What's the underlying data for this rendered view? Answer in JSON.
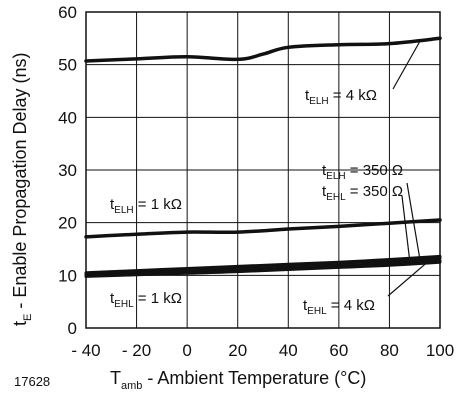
{
  "figure_id": "17628",
  "chart_data": {
    "type": "line",
    "title": "",
    "xlabel": {
      "main": "T",
      "sub": "amb",
      "rest": " - Ambient Temperature (°C)"
    },
    "ylabel": {
      "main": "t",
      "sub": "E",
      "rest": " - Enable Propagation Delay (ns)"
    },
    "xlim": [
      -40,
      100
    ],
    "ylim": [
      0,
      60
    ],
    "xticks": [
      -40,
      -20,
      0,
      20,
      40,
      60,
      80,
      100
    ],
    "xtick_labels": [
      "- 40",
      "- 20",
      "0",
      "20",
      "40",
      "60",
      "80",
      "100"
    ],
    "yticks": [
      0,
      10,
      20,
      30,
      40,
      50,
      60
    ],
    "ytick_labels": [
      "0",
      "10",
      "20",
      "30",
      "40",
      "50",
      "60"
    ],
    "grid": true,
    "series": [
      {
        "name": "tELH = 4 kΩ",
        "x": [
          -40,
          -20,
          0,
          20,
          30,
          40,
          60,
          80,
          100
        ],
        "y": [
          50.7,
          51.1,
          51.5,
          51.0,
          52.0,
          53.3,
          53.8,
          54.0,
          55.0
        ]
      },
      {
        "name": "tELH = 1 kΩ",
        "x": [
          -40,
          -20,
          0,
          20,
          40,
          60,
          80,
          100
        ],
        "y": [
          17.3,
          17.8,
          18.2,
          18.2,
          18.8,
          19.3,
          19.9,
          20.5
        ]
      },
      {
        "name": "tELH = 350 Ω",
        "x": [
          -40,
          -20,
          0,
          20,
          40,
          60,
          80,
          100
        ],
        "y": [
          10.5,
          10.9,
          11.3,
          11.7,
          12.1,
          12.5,
          13.0,
          13.6
        ]
      },
      {
        "name": "tEHL = 350 Ω",
        "x": [
          -40,
          -20,
          0,
          20,
          40,
          60,
          80,
          100
        ],
        "y": [
          10.3,
          10.7,
          11.1,
          11.5,
          11.9,
          12.3,
          12.7,
          13.3
        ]
      },
      {
        "name": "tEHL = 1 kΩ",
        "x": [
          -40,
          -20,
          0,
          20,
          40,
          60,
          80,
          100
        ],
        "y": [
          10.0,
          10.3,
          10.7,
          11.0,
          11.4,
          11.8,
          12.2,
          12.8
        ]
      },
      {
        "name": "tEHL = 4 kΩ",
        "x": [
          -40,
          -20,
          0,
          20,
          40,
          60,
          80,
          100
        ],
        "y": [
          9.8,
          10.1,
          10.4,
          10.7,
          11.1,
          11.5,
          11.9,
          12.5
        ]
      }
    ],
    "annotations": [
      {
        "main": "t",
        "sub": "ELH",
        "rest": " = 4 kΩ"
      },
      {
        "main": "t",
        "sub": "ELH",
        "rest": " = 350 Ω"
      },
      {
        "main": "t",
        "sub": "EHL",
        "rest": " = 350 Ω"
      },
      {
        "main": "t",
        "sub": "ELH",
        "rest": " = 1 kΩ"
      },
      {
        "main": "t",
        "sub": "EHL",
        "rest": " = 1 kΩ"
      },
      {
        "main": "t",
        "sub": "EHL",
        "rest": " = 4 kΩ"
      }
    ],
    "colors": {
      "line": "#111111",
      "grid": "#111111",
      "background": "#ffffff"
    }
  }
}
